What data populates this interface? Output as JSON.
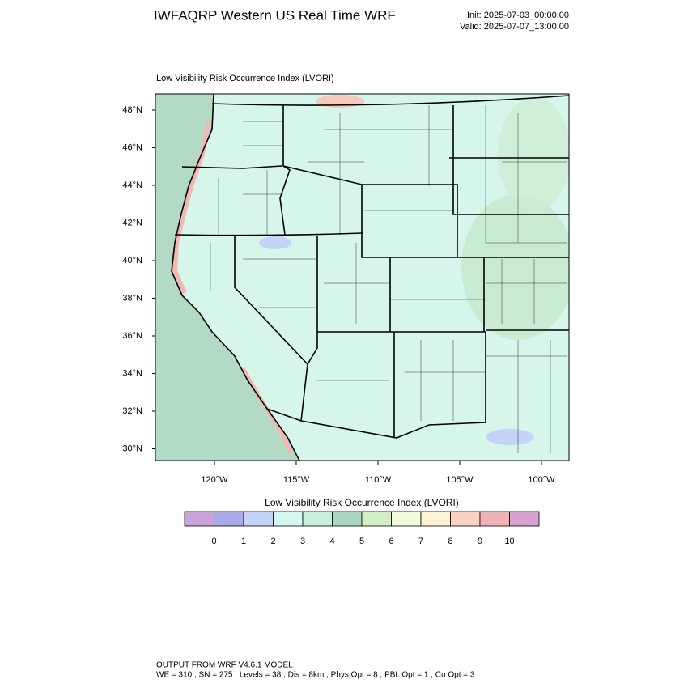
{
  "header": {
    "title": "IWFAQRP Western US Real Time WRF",
    "init": "Init: 2025-07-03_00:00:00",
    "valid": "Valid: 2025-07-07_13:00:00"
  },
  "map": {
    "subtitle": "Low Visibility Risk Occurrence Index   (LVORI)",
    "lat_labels": [
      "48°N",
      "46°N",
      "44°N",
      "42°N",
      "40°N",
      "38°N",
      "36°N",
      "34°N",
      "32°N",
      "30°N"
    ],
    "lon_labels": [
      "120°W",
      "115°W",
      "110°W",
      "105°W",
      "100°W"
    ]
  },
  "colorbar": {
    "title": "Low Visibility Risk Occurrence Index  (LVORI)",
    "levels": [
      0,
      1,
      2,
      3,
      4,
      5,
      6,
      7,
      8,
      9,
      10
    ],
    "colors": [
      "#c9a3d9",
      "#a9abe8",
      "#c4d3f7",
      "#d4f8f1",
      "#c8efdc",
      "#a9d7c0",
      "#d3efc4",
      "#f1fbd9",
      "#fff1d4",
      "#f9d2c3",
      "#f0b3b3",
      "#d8a3cf"
    ]
  },
  "footer": {
    "line1": "OUTPUT FROM WRF V4.6.1 MODEL",
    "line2": "WE = 310 ; SN = 275 ; Levels = 38 ; Dis = 8km ; Phys Opt = 8 ; PBL Opt = 1 ; Cu Opt = 3"
  }
}
